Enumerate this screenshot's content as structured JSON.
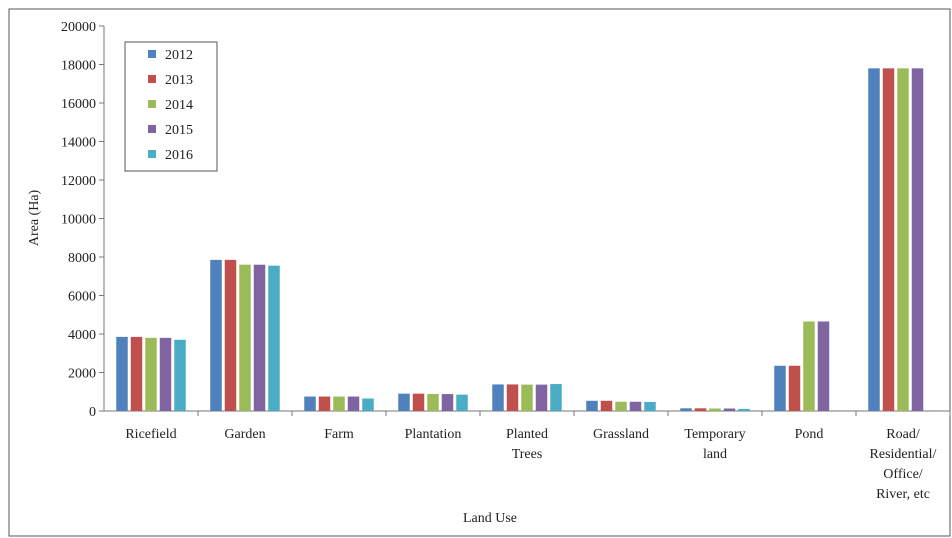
{
  "chart_data": {
    "type": "bar",
    "xlabel": "Land Use",
    "ylabel": "Area (Ha)",
    "ylim": [
      0,
      20000
    ],
    "yticks": [
      0,
      2000,
      4000,
      6000,
      8000,
      10000,
      12000,
      14000,
      16000,
      18000,
      20000
    ],
    "grid": false,
    "legend_position": "top-left",
    "categories": [
      [
        "Ricefield"
      ],
      [
        "Garden"
      ],
      [
        "Farm"
      ],
      [
        "Plantation"
      ],
      [
        "Planted",
        "Trees"
      ],
      [
        "Grassland"
      ],
      [
        "Temporary",
        "land"
      ],
      [
        "Pond"
      ],
      [
        "Road/",
        "Residential/",
        "Office/",
        "River, etc"
      ]
    ],
    "series": [
      {
        "name": "2012",
        "color": "#4f81bd",
        "values": [
          3850,
          7850,
          750,
          900,
          1380,
          530,
          140,
          2350,
          17800
        ]
      },
      {
        "name": "2013",
        "color": "#c0504d",
        "values": [
          3850,
          7850,
          750,
          900,
          1380,
          530,
          140,
          2350,
          17800
        ]
      },
      {
        "name": "2014",
        "color": "#9bbb59",
        "values": [
          3800,
          7600,
          750,
          880,
          1370,
          480,
          130,
          4650,
          17800
        ]
      },
      {
        "name": "2015",
        "color": "#8064a2",
        "values": [
          3800,
          7600,
          750,
          880,
          1370,
          480,
          130,
          4650,
          17800
        ]
      },
      {
        "name": "2016",
        "color": "#4bacc6",
        "values": [
          3700,
          7550,
          650,
          850,
          1400,
          470,
          110,
          null,
          null
        ]
      }
    ]
  }
}
